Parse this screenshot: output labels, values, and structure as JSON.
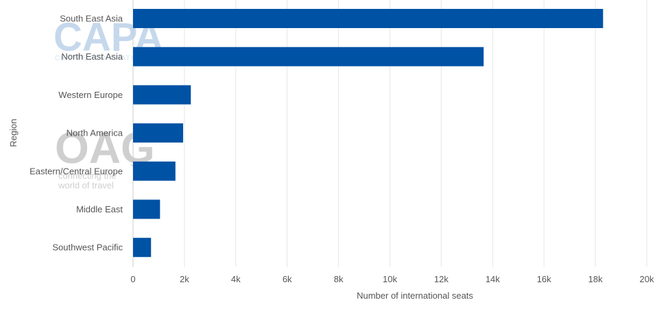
{
  "chart_data": {
    "type": "bar",
    "orientation": "horizontal",
    "categories": [
      "South East Asia",
      "North East Asia",
      "Western Europe",
      "North America",
      "Eastern/Central Europe",
      "Middle East",
      "Southwest Pacific"
    ],
    "values": [
      18300,
      13650,
      2250,
      1950,
      1650,
      1050,
      700
    ],
    "xlabel": "Number of international seats",
    "ylabel": "Region",
    "xlim": [
      0,
      20000
    ],
    "x_ticks": [
      0,
      2000,
      4000,
      6000,
      8000,
      10000,
      12000,
      14000,
      16000,
      18000,
      20000
    ],
    "x_tick_labels": [
      "0",
      "2k",
      "4k",
      "6k",
      "8k",
      "10k",
      "12k",
      "14k",
      "16k",
      "18k",
      "20k"
    ],
    "grid": "vertical",
    "legend": "none",
    "bar_color": "#0052a5",
    "grid_color": "#e6e6e6",
    "text_color": "#555555"
  },
  "watermarks": {
    "capa": {
      "text": "CAPA",
      "subtext": "CENTRE FOR AVIATION",
      "color": "#c5d8ec"
    },
    "oag": {
      "text": "OAG",
      "tagline_1": "connecting the",
      "tagline_2": "world of travel",
      "color": "#cfcfcf"
    }
  }
}
